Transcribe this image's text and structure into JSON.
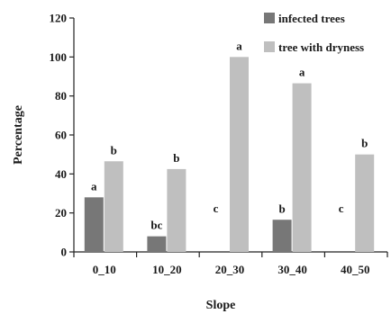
{
  "chart_data": {
    "type": "bar",
    "categories": [
      "0_10",
      "10_20",
      "20_30",
      "30_40",
      "40_50"
    ],
    "series": [
      {
        "name": "infected trees",
        "color": "#777777",
        "values": [
          28,
          8,
          0,
          16.5,
          0
        ],
        "labels": [
          "a",
          "bc",
          "c",
          "b",
          "c"
        ]
      },
      {
        "name": "tree with dryness",
        "color": "#bfbfbf",
        "values": [
          46.5,
          42.5,
          100,
          86.5,
          50
        ],
        "labels": [
          "b",
          "b",
          "a",
          "a",
          "b"
        ]
      }
    ],
    "xlabel": "Slope",
    "ylabel": "Percentage",
    "ylim": [
      0,
      120
    ],
    "yticks": [
      0,
      20,
      40,
      60,
      80,
      100,
      120
    ],
    "grid": false,
    "legend_position": "top-right"
  }
}
